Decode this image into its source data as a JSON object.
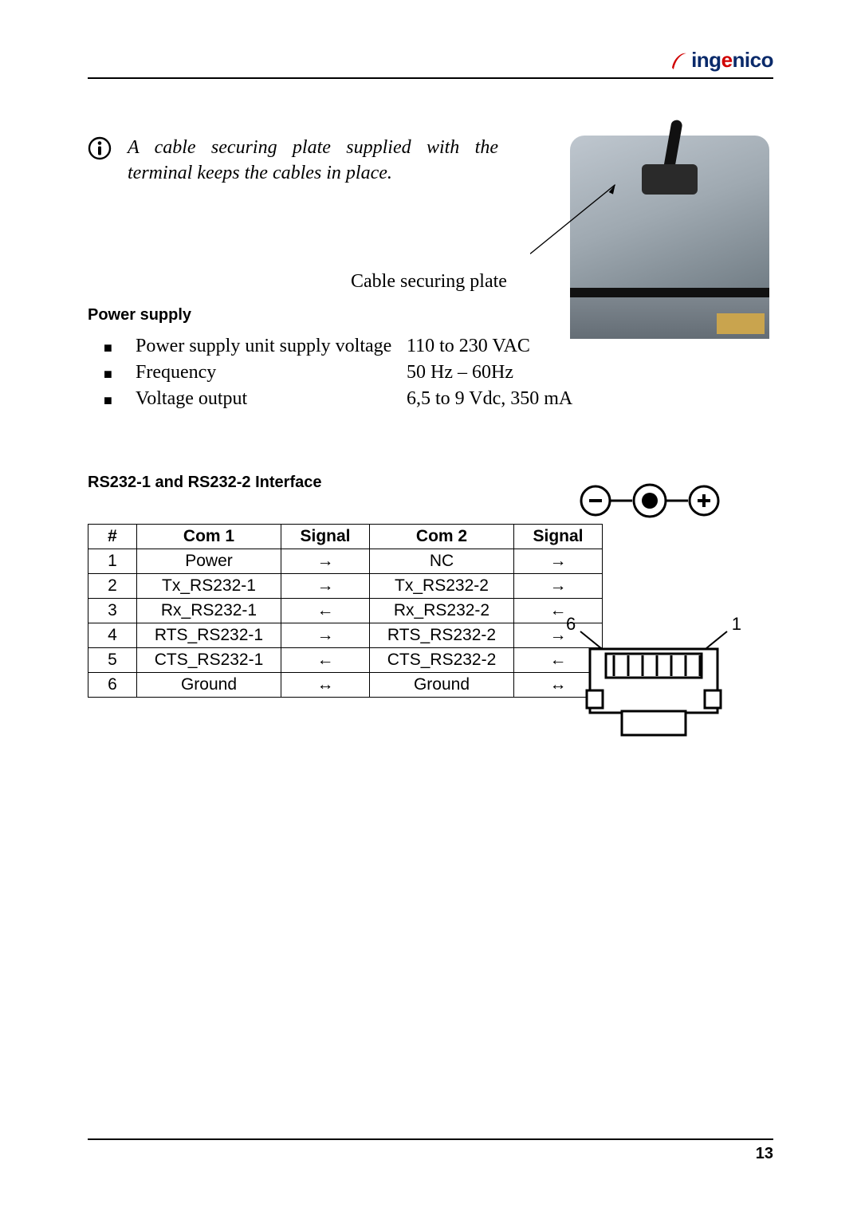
{
  "brand": {
    "name_html_parts": [
      "ing",
      "e",
      "nico"
    ],
    "swoosh_color": "#d00000",
    "text_color": "#0a2a6a"
  },
  "info_note": {
    "text": "A cable securing plate supplied with the terminal keeps the cables in place.",
    "icon": "info-icon"
  },
  "callout_label": "Cable securing plate",
  "power_section": {
    "heading": "Power supply",
    "rows": [
      {
        "label": "Power supply unit supply voltage",
        "value": "110 to 230 VAC"
      },
      {
        "label": "Frequency",
        "value": "50 Hz – 60Hz"
      },
      {
        "label": "Voltage output",
        "value": "6,5 to 9 Vdc, 350 mA"
      }
    ],
    "polarity": {
      "left": "−",
      "right": "+",
      "center_filled": true
    }
  },
  "rs232_section": {
    "heading": "RS232-1 and RS232-2 Interface",
    "columns": [
      "#",
      "Com 1",
      "Signal",
      "Com 2",
      "Signal"
    ],
    "rows": [
      [
        "1",
        "Power",
        "→",
        "NC",
        "→"
      ],
      [
        "2",
        "Tx_RS232-1",
        "→",
        "Tx_RS232-2",
        "→"
      ],
      [
        "3",
        "Rx_RS232-1",
        "←",
        "Rx_RS232-2",
        "←"
      ],
      [
        "4",
        "RTS_RS232-1",
        "→",
        "RTS_RS232-2",
        "→"
      ],
      [
        "5",
        "CTS_RS232-1",
        "←",
        "CTS_RS232-2",
        "←"
      ],
      [
        "6",
        "Ground",
        "↔",
        "Ground",
        "↔"
      ]
    ],
    "connector_pin_left": "6",
    "connector_pin_right": "1"
  },
  "page_number": "13",
  "colors": {
    "rule": "#000000",
    "text": "#000000",
    "photo_bg_top": "#bfc7cf",
    "photo_bg_bot": "#5f6b73"
  }
}
